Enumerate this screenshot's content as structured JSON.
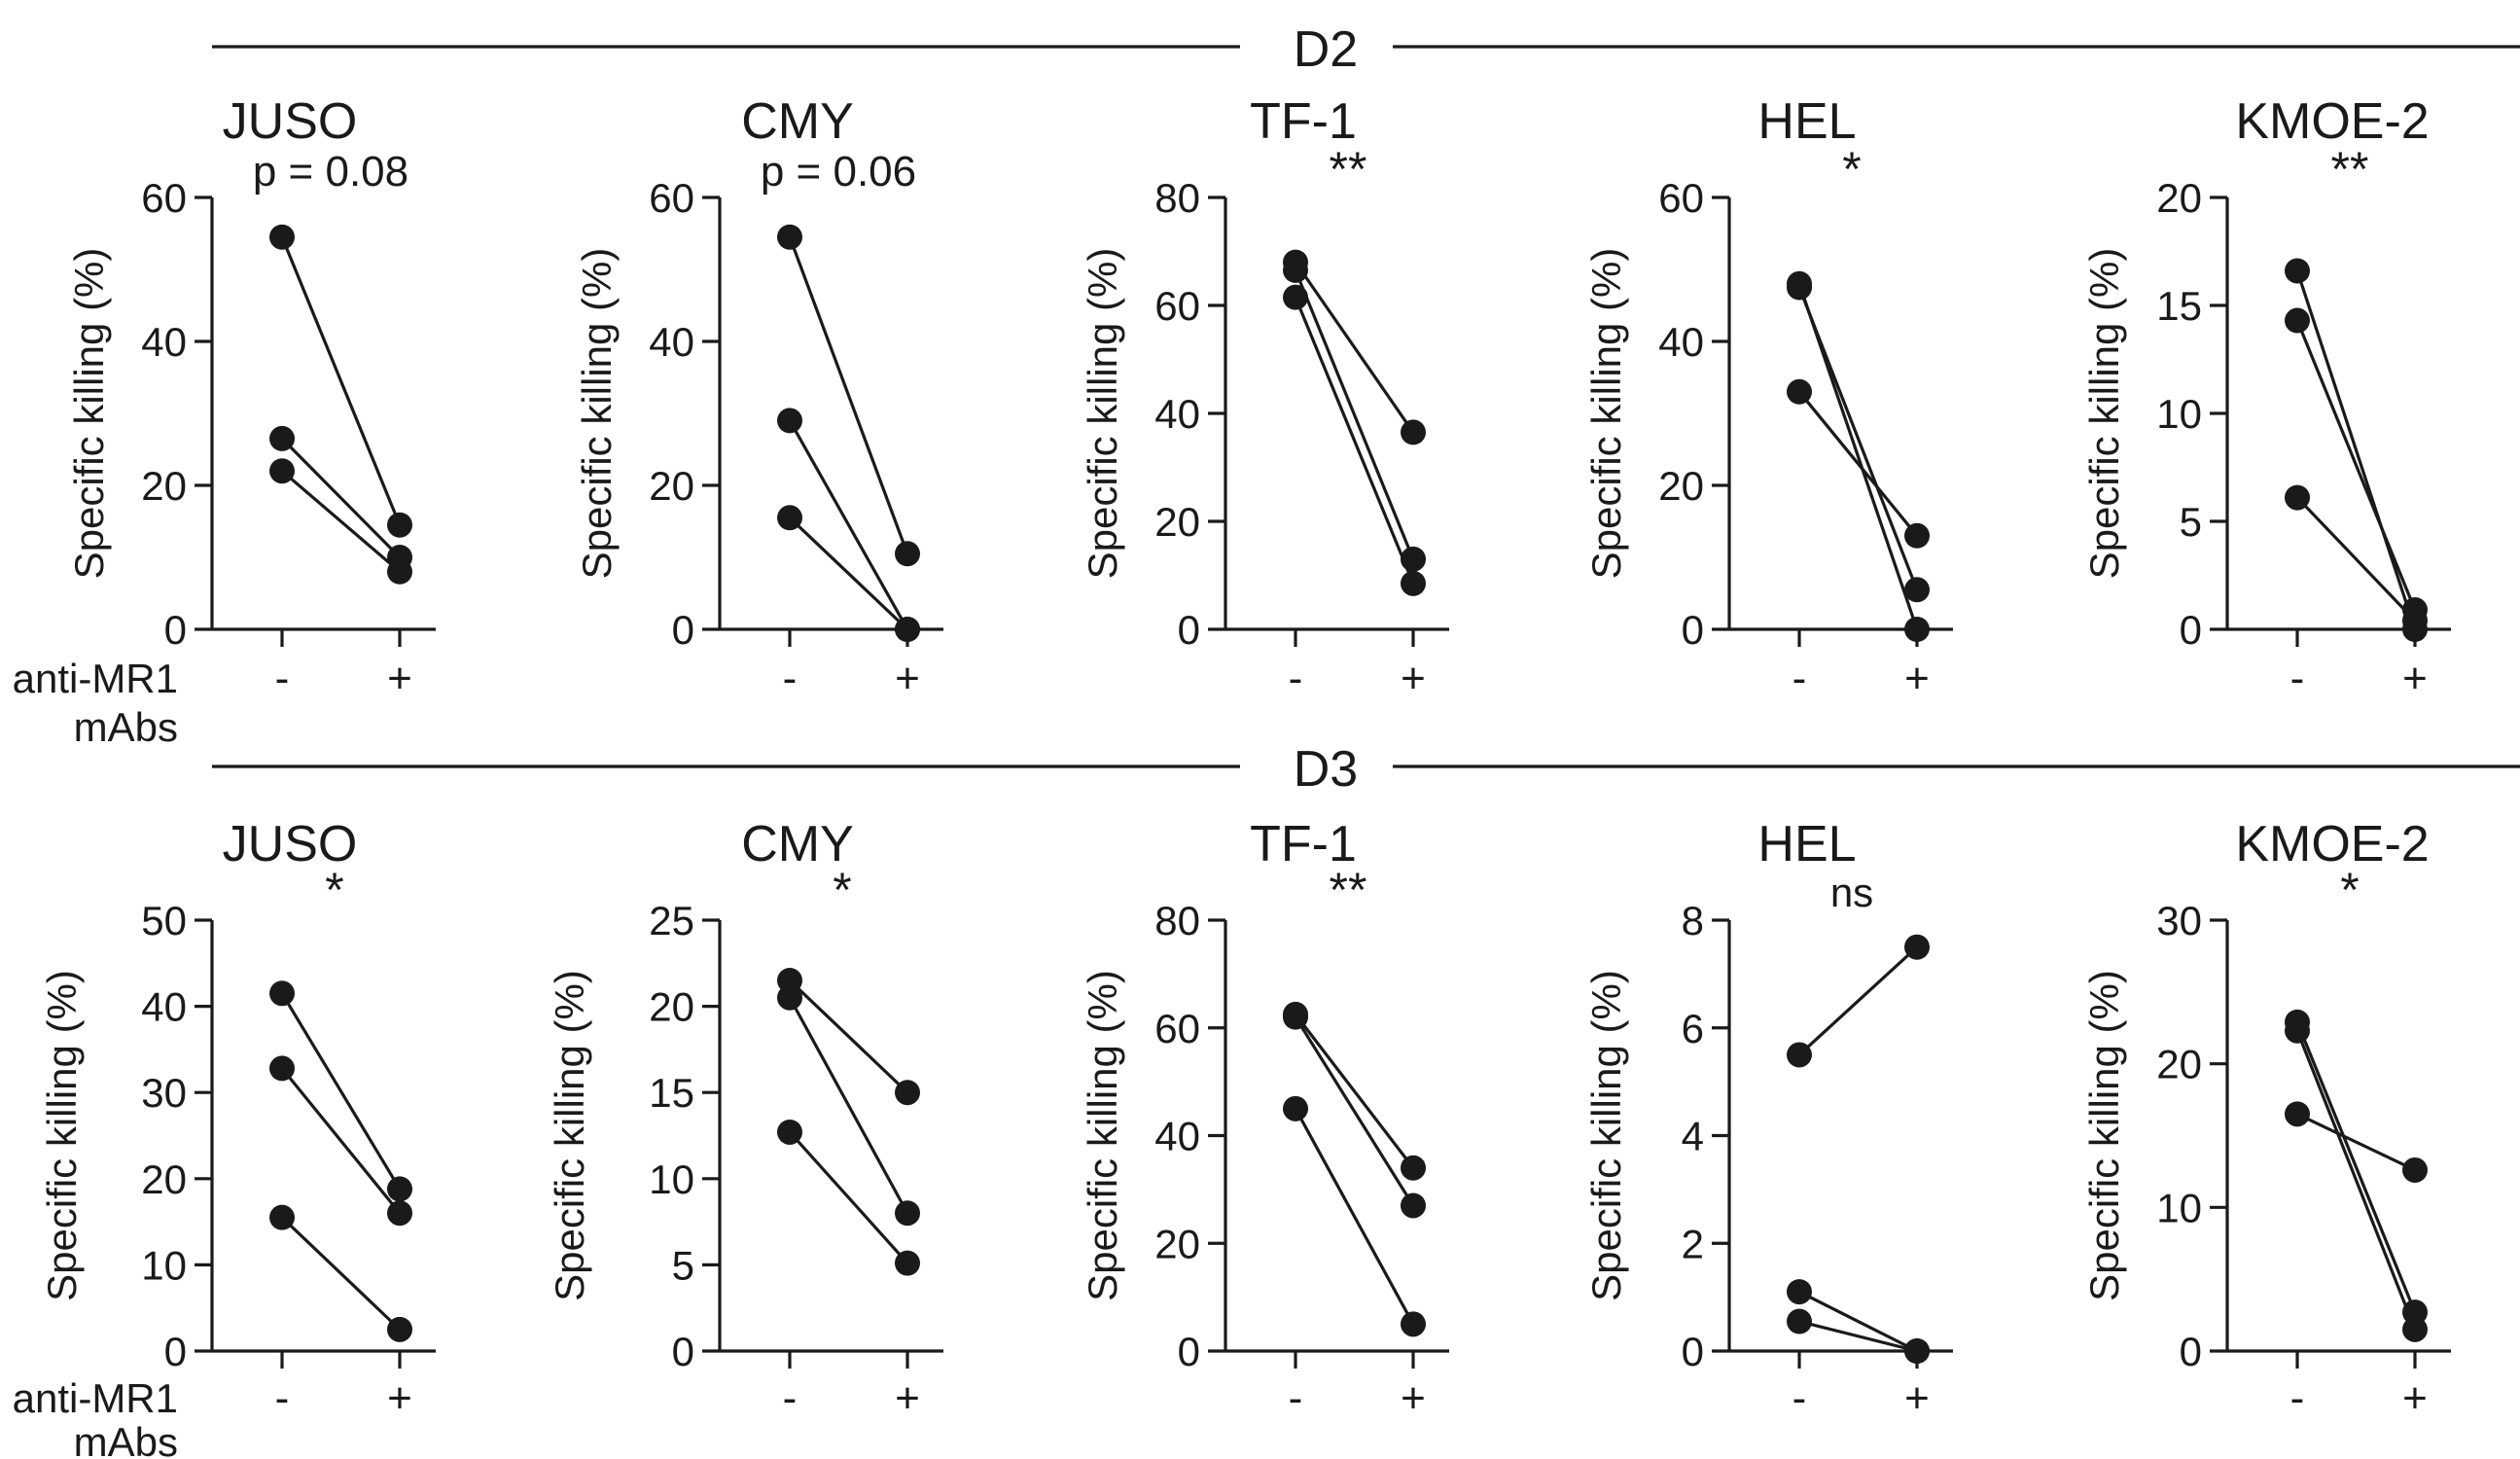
{
  "figure": {
    "x_group_label_line1": "anti-MR1",
    "x_group_label_line2": "mAbs",
    "ylabel": "Specific killing (%)"
  },
  "chart_data": [
    {
      "type": "scatter",
      "donor": "D2",
      "title": "JUSO",
      "annotation": "p = 0.08",
      "ylabel": "Specific killing (%)",
      "categories": [
        "-",
        "+"
      ],
      "ylim": [
        0,
        60
      ],
      "yticks": [
        0,
        20,
        40,
        60
      ],
      "series": [
        {
          "name": "pair-1",
          "values": [
            54.5,
            14.5
          ]
        },
        {
          "name": "pair-2",
          "values": [
            26.5,
            10.0
          ]
        },
        {
          "name": "pair-3",
          "values": [
            22.0,
            8.0
          ]
        }
      ]
    },
    {
      "type": "scatter",
      "donor": "D2",
      "title": "CMY",
      "annotation": "p = 0.06",
      "ylabel": "Specific killing (%)",
      "categories": [
        "-",
        "+"
      ],
      "ylim": [
        0,
        60
      ],
      "yticks": [
        0,
        20,
        40,
        60
      ],
      "series": [
        {
          "name": "pair-1",
          "values": [
            54.5,
            10.5
          ]
        },
        {
          "name": "pair-2",
          "values": [
            29.0,
            0.0
          ]
        },
        {
          "name": "pair-3",
          "values": [
            15.5,
            0.0
          ]
        }
      ]
    },
    {
      "type": "scatter",
      "donor": "D2",
      "title": "TF-1",
      "annotation": "**",
      "ylabel": "Specific killing (%)",
      "categories": [
        "-",
        "+"
      ],
      "ylim": [
        0,
        80
      ],
      "yticks": [
        0,
        20,
        40,
        60,
        80
      ],
      "series": [
        {
          "name": "pair-1",
          "values": [
            68.0,
            36.5
          ]
        },
        {
          "name": "pair-2",
          "values": [
            66.5,
            13.0
          ]
        },
        {
          "name": "pair-3",
          "values": [
            61.5,
            8.5
          ]
        }
      ]
    },
    {
      "type": "scatter",
      "donor": "D2",
      "title": "HEL",
      "annotation": "*",
      "ylabel": "Specific killing (%)",
      "categories": [
        "-",
        "+"
      ],
      "ylim": [
        0,
        60
      ],
      "yticks": [
        0,
        20,
        40,
        60
      ],
      "series": [
        {
          "name": "pair-1",
          "values": [
            48.0,
            0.0
          ]
        },
        {
          "name": "pair-2",
          "values": [
            47.5,
            5.5
          ]
        },
        {
          "name": "pair-3",
          "values": [
            33.0,
            13.0
          ]
        }
      ]
    },
    {
      "type": "scatter",
      "donor": "D2",
      "title": "KMOE-2",
      "annotation": "**",
      "ylabel": "Specific killing (%)",
      "categories": [
        "-",
        "+"
      ],
      "ylim": [
        0,
        20
      ],
      "yticks": [
        0,
        5,
        10,
        15,
        20
      ],
      "series": [
        {
          "name": "pair-1",
          "values": [
            16.6,
            0.0
          ]
        },
        {
          "name": "pair-2",
          "values": [
            14.3,
            0.9
          ]
        },
        {
          "name": "pair-3",
          "values": [
            6.1,
            0.4
          ]
        }
      ]
    },
    {
      "type": "scatter",
      "donor": "D3",
      "title": "JUSO",
      "annotation": "*",
      "ylabel": "Specific killing (%)",
      "categories": [
        "-",
        "+"
      ],
      "ylim": [
        0,
        50
      ],
      "yticks": [
        0,
        10,
        20,
        30,
        40,
        50
      ],
      "series": [
        {
          "name": "pair-1",
          "values": [
            41.5,
            18.8
          ]
        },
        {
          "name": "pair-2",
          "values": [
            32.8,
            16.0
          ]
        },
        {
          "name": "pair-3",
          "values": [
            15.5,
            2.5
          ]
        }
      ]
    },
    {
      "type": "scatter",
      "donor": "D3",
      "title": "CMY",
      "annotation": "*",
      "ylabel": "Specific killing (%)",
      "categories": [
        "-",
        "+"
      ],
      "ylim": [
        0,
        25
      ],
      "yticks": [
        0,
        5,
        10,
        15,
        20,
        25
      ],
      "series": [
        {
          "name": "pair-1",
          "values": [
            21.5,
            15.0
          ]
        },
        {
          "name": "pair-2",
          "values": [
            20.5,
            8.0
          ]
        },
        {
          "name": "pair-3",
          "values": [
            12.7,
            5.1
          ]
        }
      ]
    },
    {
      "type": "scatter",
      "donor": "D3",
      "title": "TF-1",
      "annotation": "**",
      "ylabel": "Specific killing (%)",
      "categories": [
        "-",
        "+"
      ],
      "ylim": [
        0,
        80
      ],
      "yticks": [
        0,
        20,
        40,
        60,
        80
      ],
      "series": [
        {
          "name": "pair-1",
          "values": [
            62.5,
            34.0
          ]
        },
        {
          "name": "pair-2",
          "values": [
            62.0,
            27.0
          ]
        },
        {
          "name": "pair-3",
          "values": [
            45.0,
            5.0
          ]
        }
      ]
    },
    {
      "type": "scatter",
      "donor": "D3",
      "title": "HEL",
      "annotation": "ns",
      "ylabel": "Specific killing (%)",
      "categories": [
        "-",
        "+"
      ],
      "ylim": [
        0,
        8
      ],
      "yticks": [
        0,
        2,
        4,
        6,
        8
      ],
      "series": [
        {
          "name": "pair-1",
          "values": [
            5.5,
            7.5
          ]
        },
        {
          "name": "pair-2",
          "values": [
            1.1,
            0.0
          ]
        },
        {
          "name": "pair-3",
          "values": [
            0.55,
            0.0
          ]
        }
      ]
    },
    {
      "type": "scatter",
      "donor": "D3",
      "title": "KMOE-2",
      "annotation": "*",
      "ylabel": "Specific killing (%)",
      "categories": [
        "-",
        "+"
      ],
      "ylim": [
        0,
        30
      ],
      "yticks": [
        0,
        10,
        20,
        30
      ],
      "series": [
        {
          "name": "pair-1",
          "values": [
            22.9,
            2.7
          ]
        },
        {
          "name": "pair-2",
          "values": [
            22.3,
            1.5
          ]
        },
        {
          "name": "pair-3",
          "values": [
            16.5,
            12.6
          ]
        }
      ]
    }
  ]
}
